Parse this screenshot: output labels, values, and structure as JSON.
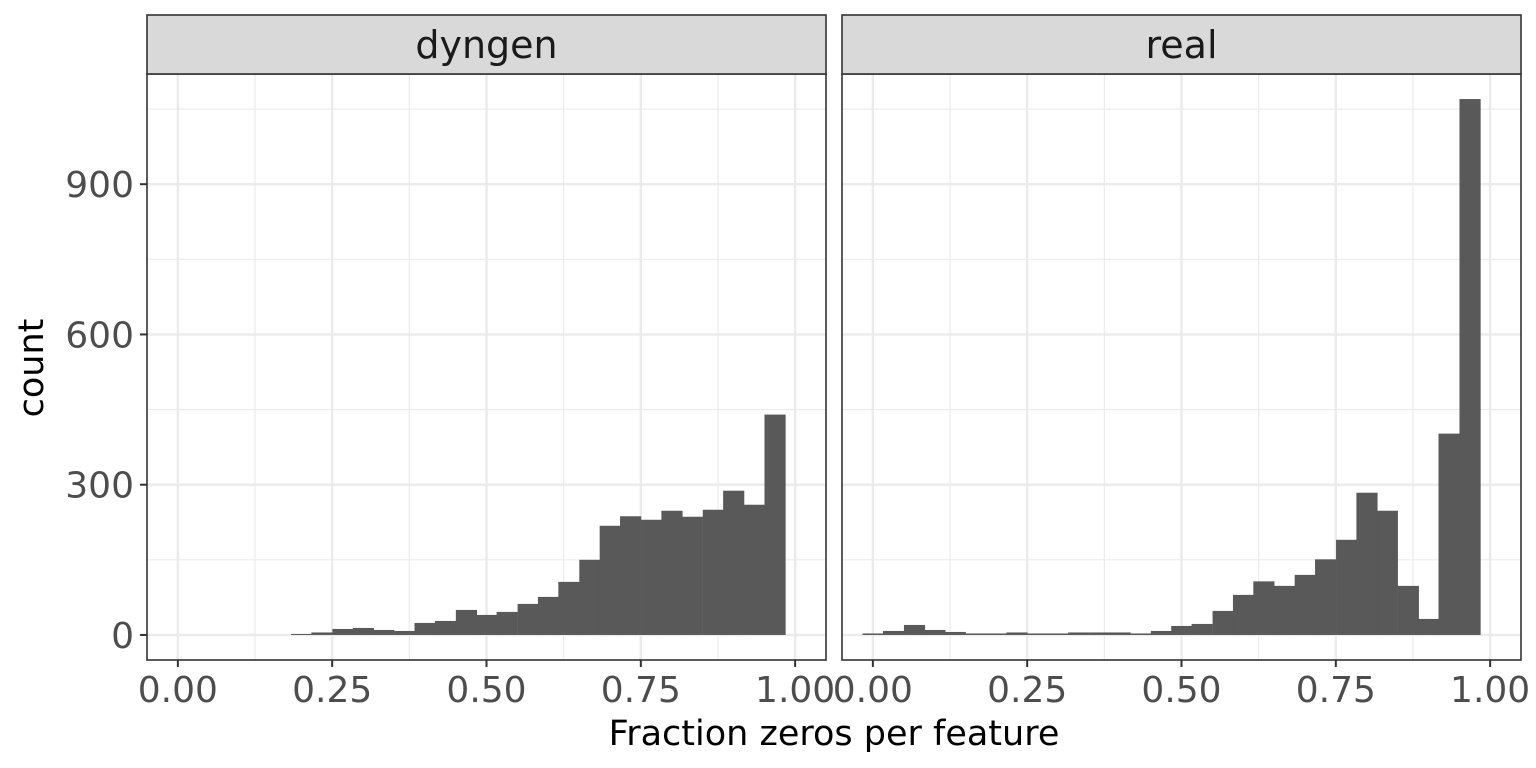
{
  "chart_data": {
    "type": "bar",
    "xlabel": "Fraction zeros per feature",
    "ylabel": "count",
    "xlim": [
      -0.05,
      1.05
    ],
    "ylim": [
      -50,
      1120
    ],
    "x_ticks": [
      0.0,
      0.25,
      0.5,
      0.75,
      1.0
    ],
    "x_tick_labels": [
      "0.00",
      "0.25",
      "0.50",
      "0.75",
      "1.00"
    ],
    "y_ticks": [
      0,
      300,
      600,
      900
    ],
    "y_tick_labels": [
      "0",
      "300",
      "600",
      "900"
    ],
    "y_minor": [
      150,
      450,
      750,
      1050
    ],
    "x_minor": [
      0.125,
      0.375,
      0.625,
      0.875
    ],
    "grid": true,
    "bin_width": 0.0333,
    "bar_color": "#595959",
    "strip_color": "#d9d9d9",
    "panels": [
      {
        "name": "dyngen",
        "bins": [
          {
            "x": 0.2,
            "count": 2
          },
          {
            "x": 0.233,
            "count": 5
          },
          {
            "x": 0.267,
            "count": 12
          },
          {
            "x": 0.3,
            "count": 14
          },
          {
            "x": 0.333,
            "count": 10
          },
          {
            "x": 0.367,
            "count": 8
          },
          {
            "x": 0.4,
            "count": 24
          },
          {
            "x": 0.433,
            "count": 28
          },
          {
            "x": 0.467,
            "count": 50
          },
          {
            "x": 0.5,
            "count": 40
          },
          {
            "x": 0.533,
            "count": 46
          },
          {
            "x": 0.567,
            "count": 62
          },
          {
            "x": 0.6,
            "count": 76
          },
          {
            "x": 0.633,
            "count": 106
          },
          {
            "x": 0.667,
            "count": 150
          },
          {
            "x": 0.7,
            "count": 218
          },
          {
            "x": 0.733,
            "count": 237
          },
          {
            "x": 0.767,
            "count": 230
          },
          {
            "x": 0.8,
            "count": 248
          },
          {
            "x": 0.833,
            "count": 236
          },
          {
            "x": 0.867,
            "count": 250
          },
          {
            "x": 0.9,
            "count": 288
          },
          {
            "x": 0.933,
            "count": 260
          },
          {
            "x": 0.967,
            "count": 440
          }
        ]
      },
      {
        "name": "real",
        "bins": [
          {
            "x": 0.0,
            "count": 3
          },
          {
            "x": 0.033,
            "count": 8
          },
          {
            "x": 0.067,
            "count": 20
          },
          {
            "x": 0.1,
            "count": 10
          },
          {
            "x": 0.133,
            "count": 6
          },
          {
            "x": 0.167,
            "count": 3
          },
          {
            "x": 0.2,
            "count": 3
          },
          {
            "x": 0.233,
            "count": 5
          },
          {
            "x": 0.267,
            "count": 3
          },
          {
            "x": 0.3,
            "count": 3
          },
          {
            "x": 0.333,
            "count": 5
          },
          {
            "x": 0.367,
            "count": 5
          },
          {
            "x": 0.4,
            "count": 5
          },
          {
            "x": 0.433,
            "count": 3
          },
          {
            "x": 0.467,
            "count": 8
          },
          {
            "x": 0.5,
            "count": 18
          },
          {
            "x": 0.533,
            "count": 22
          },
          {
            "x": 0.567,
            "count": 48
          },
          {
            "x": 0.6,
            "count": 80
          },
          {
            "x": 0.633,
            "count": 107
          },
          {
            "x": 0.667,
            "count": 98
          },
          {
            "x": 0.7,
            "count": 120
          },
          {
            "x": 0.733,
            "count": 151
          },
          {
            "x": 0.767,
            "count": 190
          },
          {
            "x": 0.8,
            "count": 284
          },
          {
            "x": 0.833,
            "count": 248
          },
          {
            "x": 0.867,
            "count": 98
          },
          {
            "x": 0.9,
            "count": 32
          },
          {
            "x": 0.933,
            "count": 402
          },
          {
            "x": 0.967,
            "count": 1070
          }
        ]
      }
    ]
  }
}
